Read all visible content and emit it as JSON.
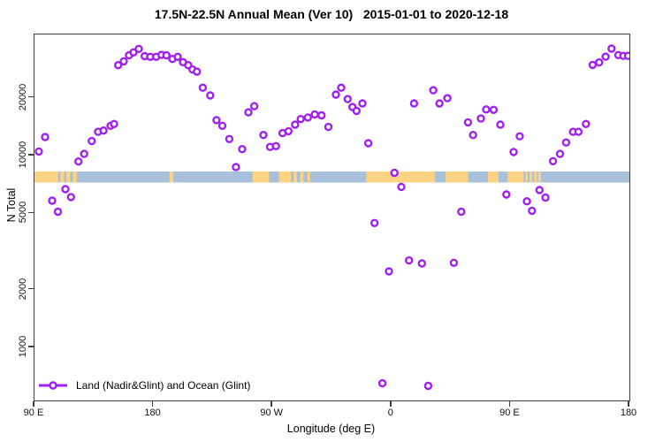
{
  "title": "17.5N-22.5N Annual Mean (Ver 10)   2015-01-01 to 2020-12-18",
  "axes": {
    "x": {
      "label": "Longitude (deg E)"
    },
    "y": {
      "label": "N Total"
    }
  },
  "legend": {
    "label": "Land (Nadir&Glint) and Ocean (Glint)"
  },
  "colors": {
    "marker": "#A020F0",
    "marker_fill": "#ffffff",
    "ocean_band": "#a9c0da",
    "land_band": "#fbd382",
    "axis_line": "#3d3d3d"
  },
  "chart_data": {
    "type": "scatter",
    "title": "17.5N-22.5N Annual Mean (Ver 10)   2015-01-01 to 2020-12-18",
    "xlabel": "Longitude (deg E)",
    "ylabel": "N Total",
    "grid": false,
    "legend_position": "bottom-left",
    "x_axis": {
      "note": "longitude plotted eastward from 90E wrapping around the globe to 180; plot domain expressed as 90..540 deg",
      "domain": [
        90,
        540
      ],
      "tick_positions": [
        90,
        180,
        270,
        360,
        450,
        540
      ],
      "tick_labels": [
        "90 E",
        "180",
        "90 W",
        "0",
        "90 E",
        "180"
      ]
    },
    "y_axis": {
      "scale": "log10",
      "range": [
        530,
        42800
      ],
      "tick_values": [
        1000,
        2000,
        5000,
        10000,
        20000
      ],
      "tick_labels": [
        "1000",
        "2000",
        "5000",
        "10000",
        "20000"
      ]
    },
    "series": [
      {
        "name": "Land (Nadir&Glint) and Ocean (Glint)",
        "marker": "open-circle",
        "color": "#A020F0",
        "points_lon_value": [
          [
            93.3,
            10500
          ],
          [
            98,
            12500
          ],
          [
            103.4,
            5820
          ],
          [
            107.7,
            5100
          ],
          [
            113.4,
            6680
          ],
          [
            117.6,
            6080
          ],
          [
            123.2,
            9310
          ],
          [
            127.6,
            10200
          ],
          [
            133.3,
            11900
          ],
          [
            138.1,
            13300
          ],
          [
            142.2,
            13500
          ],
          [
            147.5,
            14300
          ],
          [
            150.2,
            14600
          ],
          [
            153.3,
            29600
          ],
          [
            157.5,
            31000
          ],
          [
            161.5,
            33300
          ],
          [
            164.9,
            34500
          ],
          [
            168.9,
            36000
          ],
          [
            173.4,
            33000
          ],
          [
            177.6,
            32700
          ],
          [
            182.1,
            32700
          ],
          [
            186.1,
            33500
          ],
          [
            189.8,
            33300
          ],
          [
            194.3,
            31900
          ],
          [
            198.3,
            32700
          ],
          [
            202.3,
            30700
          ],
          [
            206.3,
            29600
          ],
          [
            209.5,
            28100
          ],
          [
            212.8,
            27400
          ],
          [
            217.3,
            22600
          ],
          [
            222.9,
            20600
          ],
          [
            227.7,
            15300
          ],
          [
            232.1,
            14300
          ],
          [
            237.4,
            12200
          ],
          [
            242.4,
            8710
          ],
          [
            247.1,
            10800
          ],
          [
            251.8,
            16800
          ],
          [
            256.2,
            18100
          ],
          [
            263.2,
            12800
          ],
          [
            268.2,
            11100
          ],
          [
            272.7,
            11200
          ],
          [
            277.6,
            13100
          ],
          [
            282.2,
            13400
          ],
          [
            287.1,
            14500
          ],
          [
            291.4,
            15500
          ],
          [
            296.8,
            15800
          ],
          [
            302,
            16400
          ],
          [
            307.1,
            16200
          ],
          [
            312.3,
            14100
          ],
          [
            318,
            20800
          ],
          [
            322,
            22600
          ],
          [
            326.9,
            19700
          ],
          [
            330.5,
            17900
          ],
          [
            333.6,
            17100
          ],
          [
            338.1,
            18700
          ],
          [
            342.5,
            11600
          ],
          [
            347.2,
            4450
          ],
          [
            353.2,
            650
          ],
          [
            358.1,
            2490
          ],
          [
            362.3,
            8130
          ],
          [
            367.5,
            6870
          ],
          [
            373.3,
            2840
          ],
          [
            377.1,
            18700
          ],
          [
            383.1,
            2740
          ],
          [
            387.8,
            630
          ],
          [
            391.6,
            21900
          ],
          [
            396.3,
            18700
          ],
          [
            402.3,
            19900
          ],
          [
            407.2,
            2760
          ],
          [
            412.8,
            5100
          ],
          [
            417.9,
            14900
          ],
          [
            421.7,
            12800
          ],
          [
            427.7,
            15600
          ],
          [
            431.7,
            17400
          ],
          [
            437.3,
            17300
          ],
          [
            442.4,
            14500
          ],
          [
            446.9,
            6270
          ],
          [
            452.4,
            10450
          ],
          [
            457,
            12600
          ],
          [
            462.5,
            5780
          ],
          [
            466.3,
            5160
          ],
          [
            472,
            6610
          ],
          [
            476.5,
            6040
          ],
          [
            482.2,
            9350
          ],
          [
            487.5,
            10200
          ],
          [
            492.1,
            11700
          ],
          [
            497.4,
            13300
          ],
          [
            501.5,
            13300
          ],
          [
            507.1,
            14600
          ],
          [
            512.2,
            29700
          ],
          [
            517.1,
            30600
          ],
          [
            522,
            32800
          ],
          [
            526.5,
            36100
          ],
          [
            531.6,
            33400
          ],
          [
            535.4,
            33100
          ],
          [
            539,
            33100
          ]
        ]
      }
    ],
    "land_ocean_strip": {
      "description": "horizontal map band showing land (orange) vs ocean (blue) along longitude at 17.5N-22.5N",
      "value_center": 7800,
      "ocean_color": "#a9c0da",
      "land_color": "#fbd382",
      "land_segments_deg": [
        [
          90,
          108
        ],
        [
          109.5,
          112.5
        ],
        [
          114,
          117
        ],
        [
          119,
          122
        ],
        [
          192,
          195
        ],
        [
          255,
          267.5
        ],
        [
          275,
          284
        ],
        [
          286,
          288.5
        ],
        [
          291,
          293.5
        ],
        [
          296.5,
          298.5
        ],
        [
          341,
          393
        ],
        [
          401,
          418
        ],
        [
          433,
          441
        ],
        [
          448,
          460
        ],
        [
          461.5,
          463
        ],
        [
          464.5,
          466.5
        ],
        [
          468,
          470
        ],
        [
          471,
          473
        ]
      ]
    }
  }
}
